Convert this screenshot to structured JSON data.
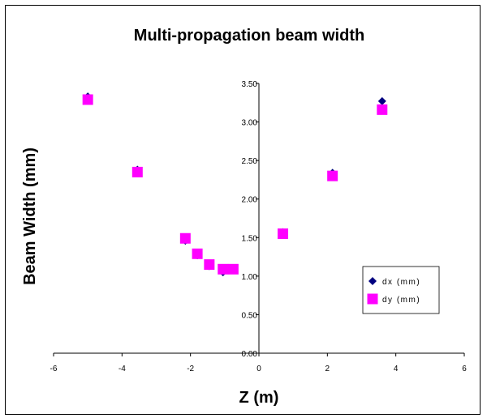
{
  "chart_data": {
    "type": "scatter",
    "title": "Multi-propagation beam width",
    "xlabel": "Z (m)",
    "ylabel": "Beam Width (mm)",
    "xlim": [
      -6,
      6
    ],
    "ylim": [
      0,
      3.5
    ],
    "x_ticks": [
      "-6",
      "-4",
      "-2",
      "0",
      "2",
      "4",
      "6"
    ],
    "y_ticks": [
      "0.00",
      "0.50",
      "1.00",
      "1.50",
      "2.00",
      "2.50",
      "3.00",
      "3.50"
    ],
    "grid": false,
    "legend_position": "right",
    "series": [
      {
        "name": "dx (mm)",
        "marker": "diamond",
        "color": "#000080",
        "points": [
          {
            "x": -5.0,
            "y": 3.33
          },
          {
            "x": -3.55,
            "y": 2.38
          },
          {
            "x": -2.15,
            "y": 1.46
          },
          {
            "x": -1.8,
            "y": 1.27
          },
          {
            "x": -1.45,
            "y": 1.13
          },
          {
            "x": -1.05,
            "y": 1.05
          },
          {
            "x": -0.75,
            "y": 1.08
          },
          {
            "x": 0.7,
            "y": 1.57
          },
          {
            "x": 2.15,
            "y": 2.34
          },
          {
            "x": 3.6,
            "y": 3.27
          }
        ]
      },
      {
        "name": "dy (mm)",
        "marker": "square",
        "color": "#ff00ff",
        "points": [
          {
            "x": -5.0,
            "y": 3.29
          },
          {
            "x": -3.55,
            "y": 2.35
          },
          {
            "x": -2.15,
            "y": 1.49
          },
          {
            "x": -1.8,
            "y": 1.29
          },
          {
            "x": -1.45,
            "y": 1.15
          },
          {
            "x": -1.05,
            "y": 1.09
          },
          {
            "x": -0.75,
            "y": 1.09
          },
          {
            "x": 0.7,
            "y": 1.55
          },
          {
            "x": 2.15,
            "y": 2.3
          },
          {
            "x": 3.6,
            "y": 3.16
          }
        ]
      }
    ]
  }
}
